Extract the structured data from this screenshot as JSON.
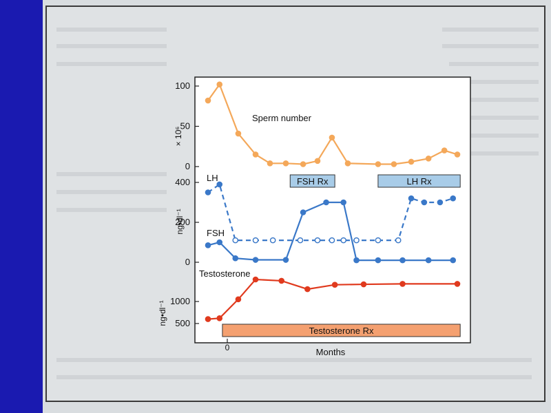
{
  "chart_data": [
    {
      "type": "line",
      "title": "",
      "series": [
        {
          "name": "Sperm number",
          "color": "#f4a85a",
          "style": "solid",
          "x": [
            0.0,
            0.8,
            2.1,
            3.3,
            4.3,
            5.4,
            6.6,
            7.6,
            8.6,
            9.7,
            11.8,
            12.9,
            14.1,
            15.3,
            16.4,
            17.3
          ],
          "values": [
            82,
            102,
            41,
            15,
            4,
            4,
            3,
            7,
            36,
            4,
            3,
            3,
            6,
            10,
            20,
            15
          ]
        }
      ],
      "ylabel": "× 10⁶",
      "yticks": [
        0,
        50,
        100
      ],
      "ylim": [
        0,
        110
      ]
    },
    {
      "type": "line",
      "title": "",
      "series": [
        {
          "name": "LH",
          "color": "#3a78c8",
          "style": "dashed",
          "x": [
            0.0,
            0.8,
            1.9,
            3.3,
            4.5,
            6.4,
            7.6,
            8.6,
            9.4,
            10.3,
            11.8,
            13.2,
            14.1,
            15.0,
            16.1,
            17.0
          ],
          "values": [
            350,
            390,
            110,
            110,
            110,
            110,
            110,
            110,
            110,
            110,
            110,
            110,
            320,
            300,
            300,
            320
          ]
        },
        {
          "name": "FSH",
          "color": "#3a78c8",
          "style": "solid",
          "x": [
            0.0,
            0.8,
            1.9,
            3.3,
            5.4,
            6.6,
            8.2,
            9.4,
            10.3,
            11.8,
            13.5,
            15.3,
            17.0
          ],
          "values": [
            85,
            100,
            20,
            12,
            12,
            250,
            300,
            300,
            10,
            10,
            10,
            10,
            10
          ]
        }
      ],
      "ylabel": "ng•dl⁻¹",
      "yticks": [
        0,
        200,
        400
      ],
      "ylim": [
        0,
        420
      ],
      "bars": [
        {
          "label": "FSH Rx",
          "from": 5.7,
          "to": 8.8
        },
        {
          "label": "LH Rx",
          "from": 11.8,
          "to": 17.5
        }
      ]
    },
    {
      "type": "line",
      "title": "",
      "series": [
        {
          "name": "Testosterone",
          "color": "#e03a1e",
          "style": "solid",
          "x": [
            0.0,
            0.8,
            2.1,
            3.3,
            5.1,
            6.9,
            8.8,
            10.8,
            13.5,
            17.3
          ],
          "values": [
            600,
            620,
            1050,
            1500,
            1470,
            1280,
            1380,
            1390,
            1400,
            1400
          ]
        }
      ],
      "ylabel": "ng•dl⁻¹",
      "yticks": [
        500,
        1000
      ],
      "ylim": [
        0,
        1600
      ],
      "bars": [
        {
          "label": "Testosterone Rx",
          "from": 1.0,
          "to": 17.5
        }
      ]
    }
  ],
  "xaxis": {
    "label": "Months",
    "tick_label": "0",
    "tick_at": 1.0,
    "xlim": [
      -0.3,
      18.0
    ]
  },
  "colors": {
    "sperm": "#f4a85a",
    "hormone": "#3a78c8",
    "testosterone": "#e03a1e",
    "rx_blue": "#a8cce8",
    "rx_orange": "#f4a070"
  }
}
